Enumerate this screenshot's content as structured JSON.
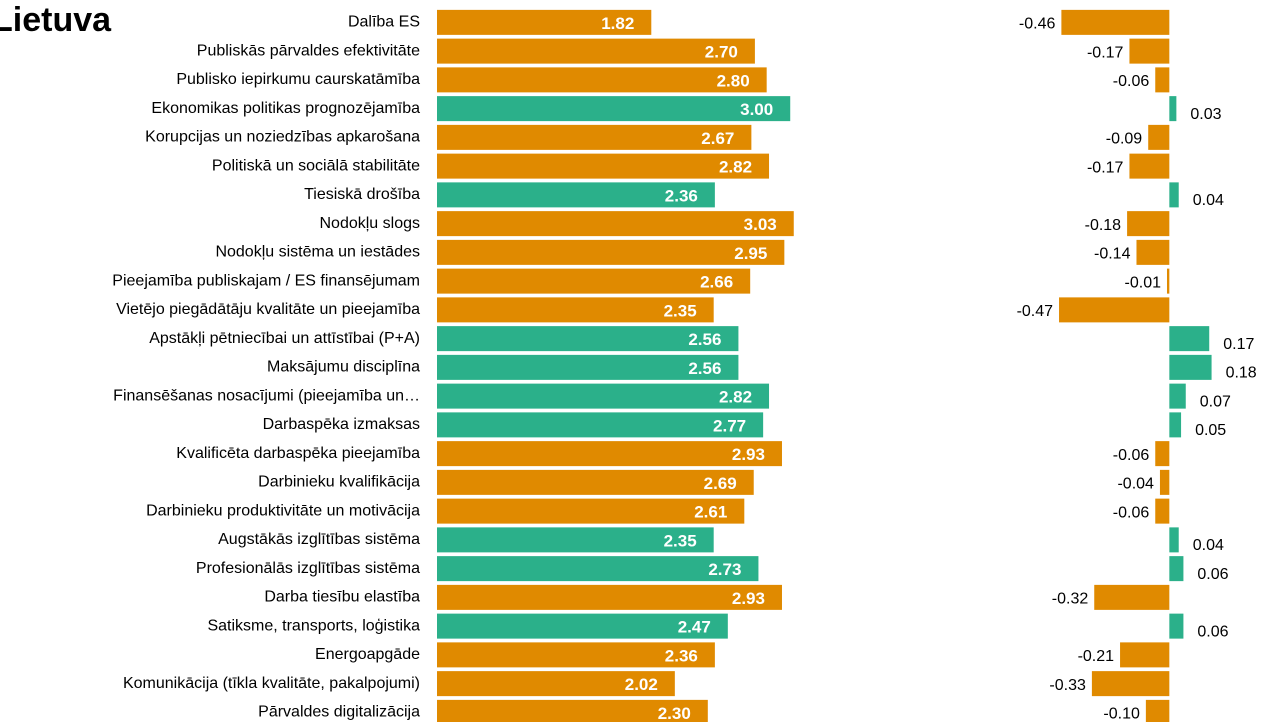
{
  "chart_data": [
    {
      "type": "bar",
      "title": "Lietuva",
      "categories": [
        "Dalība ES",
        "Publiskās pārvaldes efektivitāte",
        "Publisko iepirkumu caurskatāmība",
        "Ekonomikas politikas prognozējamība",
        "Korupcijas un noziedzības apkarošana",
        "Politiskā un sociālā stabilitāte",
        "Tiesiskā drošība",
        "Nodokļu slogs",
        "Nodokļu sistēma un iestādes",
        "Pieejamība publiskajam / ES finansējumam",
        "Vietējo piegādātāju kvalitāte un pieejamība",
        "Apstākļi pētniecībai un attīstībai (P+A)",
        "Maksājumu disciplīna",
        "Finansēšanas nosacījumi (pieejamība un…",
        "Darbaspēka izmaksas",
        "Kvalificēta darbaspēka pieejamība",
        "Darbinieku kvalifikācija",
        "Darbinieku produktivitāte un motivācija",
        "Augstākās izglītības sistēma",
        "Profesionālās izglītības sistēma",
        "Darba tiesību elastība",
        "Satiksme, transports, loģistika",
        "Energoapgāde",
        "Komunikācija (tīkla kvalitāte, pakalpojumi)",
        "Pārvaldes digitalizācija"
      ],
      "values": [
        1.82,
        2.7,
        2.8,
        3.0,
        2.67,
        2.82,
        2.36,
        3.03,
        2.95,
        2.66,
        2.35,
        2.56,
        2.56,
        2.82,
        2.77,
        2.93,
        2.69,
        2.61,
        2.35,
        2.73,
        2.93,
        2.47,
        2.36,
        2.02,
        2.3
      ],
      "value_labels": [
        "1.82",
        "2.70",
        "2.80",
        "3.00",
        "2.67",
        "2.82",
        "2.36",
        "3.03",
        "2.95",
        "2.66",
        "2.35",
        "2.56",
        "2.56",
        "2.82",
        "2.77",
        "2.93",
        "2.69",
        "2.61",
        "2.35",
        "2.73",
        "2.93",
        "2.47",
        "2.36",
        "2.02",
        "2.30"
      ],
      "colors": [
        "#e08a00",
        "#e08a00",
        "#e08a00",
        "#2bb08a",
        "#e08a00",
        "#e08a00",
        "#2bb08a",
        "#e08a00",
        "#e08a00",
        "#e08a00",
        "#e08a00",
        "#2bb08a",
        "#2bb08a",
        "#2bb08a",
        "#2bb08a",
        "#e08a00",
        "#e08a00",
        "#e08a00",
        "#2bb08a",
        "#2bb08a",
        "#e08a00",
        "#2bb08a",
        "#e08a00",
        "#e08a00",
        "#e08a00"
      ],
      "xlim": [
        0,
        3.1
      ]
    },
    {
      "type": "bar",
      "values": [
        -0.46,
        -0.17,
        -0.06,
        0.03,
        -0.09,
        -0.17,
        0.04,
        -0.18,
        -0.14,
        -0.01,
        -0.47,
        0.17,
        0.18,
        0.07,
        0.05,
        -0.06,
        -0.04,
        -0.06,
        0.04,
        0.06,
        -0.32,
        0.06,
        -0.21,
        -0.33,
        -0.1
      ],
      "value_labels": [
        "-0.46",
        "-0.17",
        "-0.06",
        "0.03",
        "-0.09",
        "-0.17",
        "0.04",
        "-0.18",
        "-0.14",
        "-0.01",
        "-0.47",
        "0.17",
        "0.18",
        "0.07",
        "0.05",
        "-0.06",
        "-0.04",
        "-0.06",
        "0.04",
        "0.06",
        "-0.32",
        "0.06",
        "-0.21",
        "-0.33",
        "-0.10"
      ],
      "colors": [
        "#e08a00",
        "#e08a00",
        "#e08a00",
        "#2bb08a",
        "#e08a00",
        "#e08a00",
        "#2bb08a",
        "#e08a00",
        "#e08a00",
        "#e08a00",
        "#e08a00",
        "#2bb08a",
        "#2bb08a",
        "#2bb08a",
        "#2bb08a",
        "#e08a00",
        "#e08a00",
        "#e08a00",
        "#2bb08a",
        "#2bb08a",
        "#e08a00",
        "#2bb08a",
        "#e08a00",
        "#e08a00",
        "#e08a00"
      ],
      "xlim": [
        -0.5,
        0.25
      ]
    }
  ]
}
